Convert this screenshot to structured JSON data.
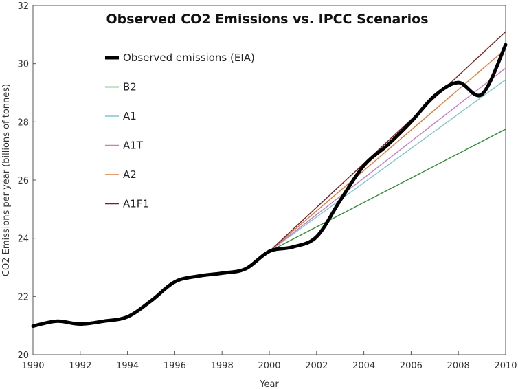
{
  "chart_data": {
    "type": "line",
    "title": "Observed CO2 Emissions vs. IPCC Scenarios",
    "xlabel": "Year",
    "ylabel": "CO2 Emissions per year (billions of tonnes)",
    "xlim": [
      1990,
      2010
    ],
    "ylim": [
      20,
      32
    ],
    "x_ticks": [
      "1990",
      "1992",
      "1994",
      "1996",
      "1998",
      "2000",
      "2002",
      "2004",
      "2006",
      "2008",
      "2010"
    ],
    "y_ticks": [
      "20",
      "22",
      "24",
      "26",
      "28",
      "30",
      "32"
    ],
    "grid": false,
    "legend_position": "top-left",
    "series": [
      {
        "name": "Observed emissions (EIA)",
        "color": "#000000",
        "x": [
          1990,
          1991,
          1992,
          1993,
          1994,
          1995,
          1996,
          1997,
          1998,
          1999,
          2000,
          2001,
          2002,
          2003,
          2004,
          2005,
          2006,
          2007,
          2008,
          2009,
          2010
        ],
        "y": [
          20.98,
          21.15,
          21.05,
          21.15,
          21.3,
          21.85,
          22.5,
          22.7,
          22.8,
          22.95,
          23.55,
          23.7,
          24.05,
          25.3,
          26.5,
          27.2,
          28.0,
          28.9,
          29.35,
          28.95,
          30.65
        ]
      },
      {
        "name": "B2",
        "color": "#2e8b2e",
        "x": [
          2000,
          2010
        ],
        "y": [
          23.55,
          27.75
        ]
      },
      {
        "name": "A1",
        "color": "#7fc6cf",
        "x": [
          2000,
          2010
        ],
        "y": [
          23.55,
          29.45
        ]
      },
      {
        "name": "A1T",
        "color": "#c77cc7",
        "x": [
          2000,
          2010
        ],
        "y": [
          23.55,
          29.85
        ]
      },
      {
        "name": "A2",
        "color": "#e07a3a",
        "x": [
          2000,
          2010
        ],
        "y": [
          23.55,
          30.5
        ]
      },
      {
        "name": "A1F1",
        "color": "#7a2020",
        "x": [
          2000,
          2010
        ],
        "y": [
          23.55,
          31.1
        ]
      }
    ]
  }
}
